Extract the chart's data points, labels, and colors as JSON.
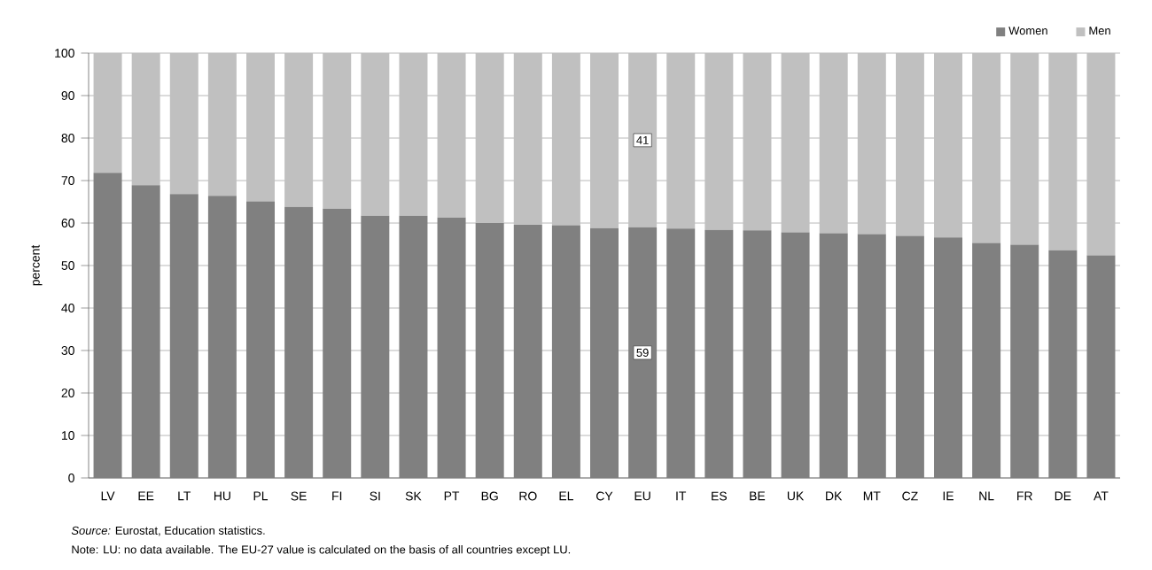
{
  "chart_data": {
    "type": "bar",
    "stacked": true,
    "ylabel": "percent",
    "categories": [
      "LV",
      "EE",
      "LT",
      "HU",
      "PL",
      "SE",
      "FI",
      "SI",
      "SK",
      "PT",
      "BG",
      "RO",
      "EL",
      "CY",
      "EU",
      "IT",
      "ES",
      "BE",
      "UK",
      "DK",
      "MT",
      "CZ",
      "IE",
      "NL",
      "FR",
      "DE",
      "AT"
    ],
    "series": [
      {
        "name": "Women",
        "color": "#808080",
        "values": [
          71.8,
          68.9,
          66.8,
          66.4,
          65.1,
          63.8,
          63.4,
          61.7,
          61.7,
          61.3,
          60.0,
          59.6,
          59.5,
          58.8,
          59,
          58.7,
          58.4,
          58.3,
          57.8,
          57.6,
          57.4,
          57.0,
          56.6,
          55.3,
          54.9,
          53.6,
          52.4
        ],
        "value_labels": [
          null,
          null,
          null,
          null,
          null,
          null,
          null,
          null,
          null,
          null,
          null,
          null,
          null,
          null,
          "59",
          null,
          null,
          null,
          null,
          null,
          null,
          null,
          null,
          null,
          null,
          null,
          null
        ]
      },
      {
        "name": "Men",
        "color": "#c0c0c0",
        "values": [
          28.2,
          31.1,
          33.2,
          33.6,
          34.9,
          36.2,
          36.6,
          38.3,
          38.3,
          38.7,
          40.0,
          40.4,
          40.5,
          41.2,
          41,
          41.3,
          41.6,
          41.7,
          42.2,
          42.4,
          42.6,
          43.0,
          43.4,
          44.7,
          45.1,
          46.4,
          47.6
        ],
        "value_labels": [
          null,
          null,
          null,
          null,
          null,
          null,
          null,
          null,
          null,
          null,
          null,
          null,
          null,
          null,
          "41",
          null,
          null,
          null,
          null,
          null,
          null,
          null,
          null,
          null,
          null,
          null,
          null
        ]
      }
    ],
    "ylim": [
      0,
      100
    ],
    "yticks": [
      0,
      10,
      20,
      30,
      40,
      50,
      60,
      70,
      80,
      90,
      100
    ],
    "grid": "y",
    "legend": "top right",
    "annotations": [
      "*Source:* Eurostat, Education statistics.",
      "Note: LU: no data available. The EU-27 value is calculated on the basis of all countries except LU."
    ]
  }
}
